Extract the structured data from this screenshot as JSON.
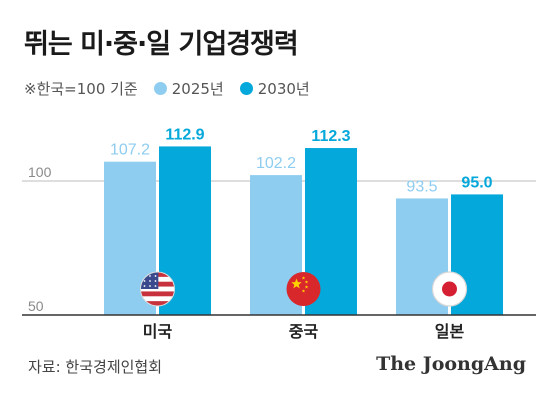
{
  "title": "뛰는 미·중·일 기업경쟁력",
  "legend": {
    "note": "※한국=100 기준",
    "items": [
      {
        "label": "2025년",
        "color": "#8ecdf0"
      },
      {
        "label": "2030년",
        "color": "#05a8da"
      }
    ]
  },
  "source": "자료: 한국경제인협회",
  "brand": "The JoongAng",
  "chart_data": {
    "type": "bar",
    "categories": [
      "미국",
      "중국",
      "일본"
    ],
    "category_flags": [
      "us-flag-icon",
      "cn-flag-icon",
      "jp-flag-icon"
    ],
    "series": [
      {
        "name": "2025년",
        "values": [
          107.2,
          102.2,
          93.5
        ],
        "labels": [
          "107.2",
          "102.2",
          "93.5"
        ],
        "color": "#8ecdf0"
      },
      {
        "name": "2030년",
        "values": [
          112.9,
          112.3,
          95.0
        ],
        "labels": [
          "112.9",
          "112.3",
          "95.0"
        ],
        "color": "#05a8da"
      }
    ],
    "yticks": [
      {
        "value": 50,
        "label": "50"
      },
      {
        "value": 100,
        "label": "100"
      }
    ],
    "ylim": [
      50,
      120
    ],
    "reference_line": 100,
    "grid": false
  }
}
